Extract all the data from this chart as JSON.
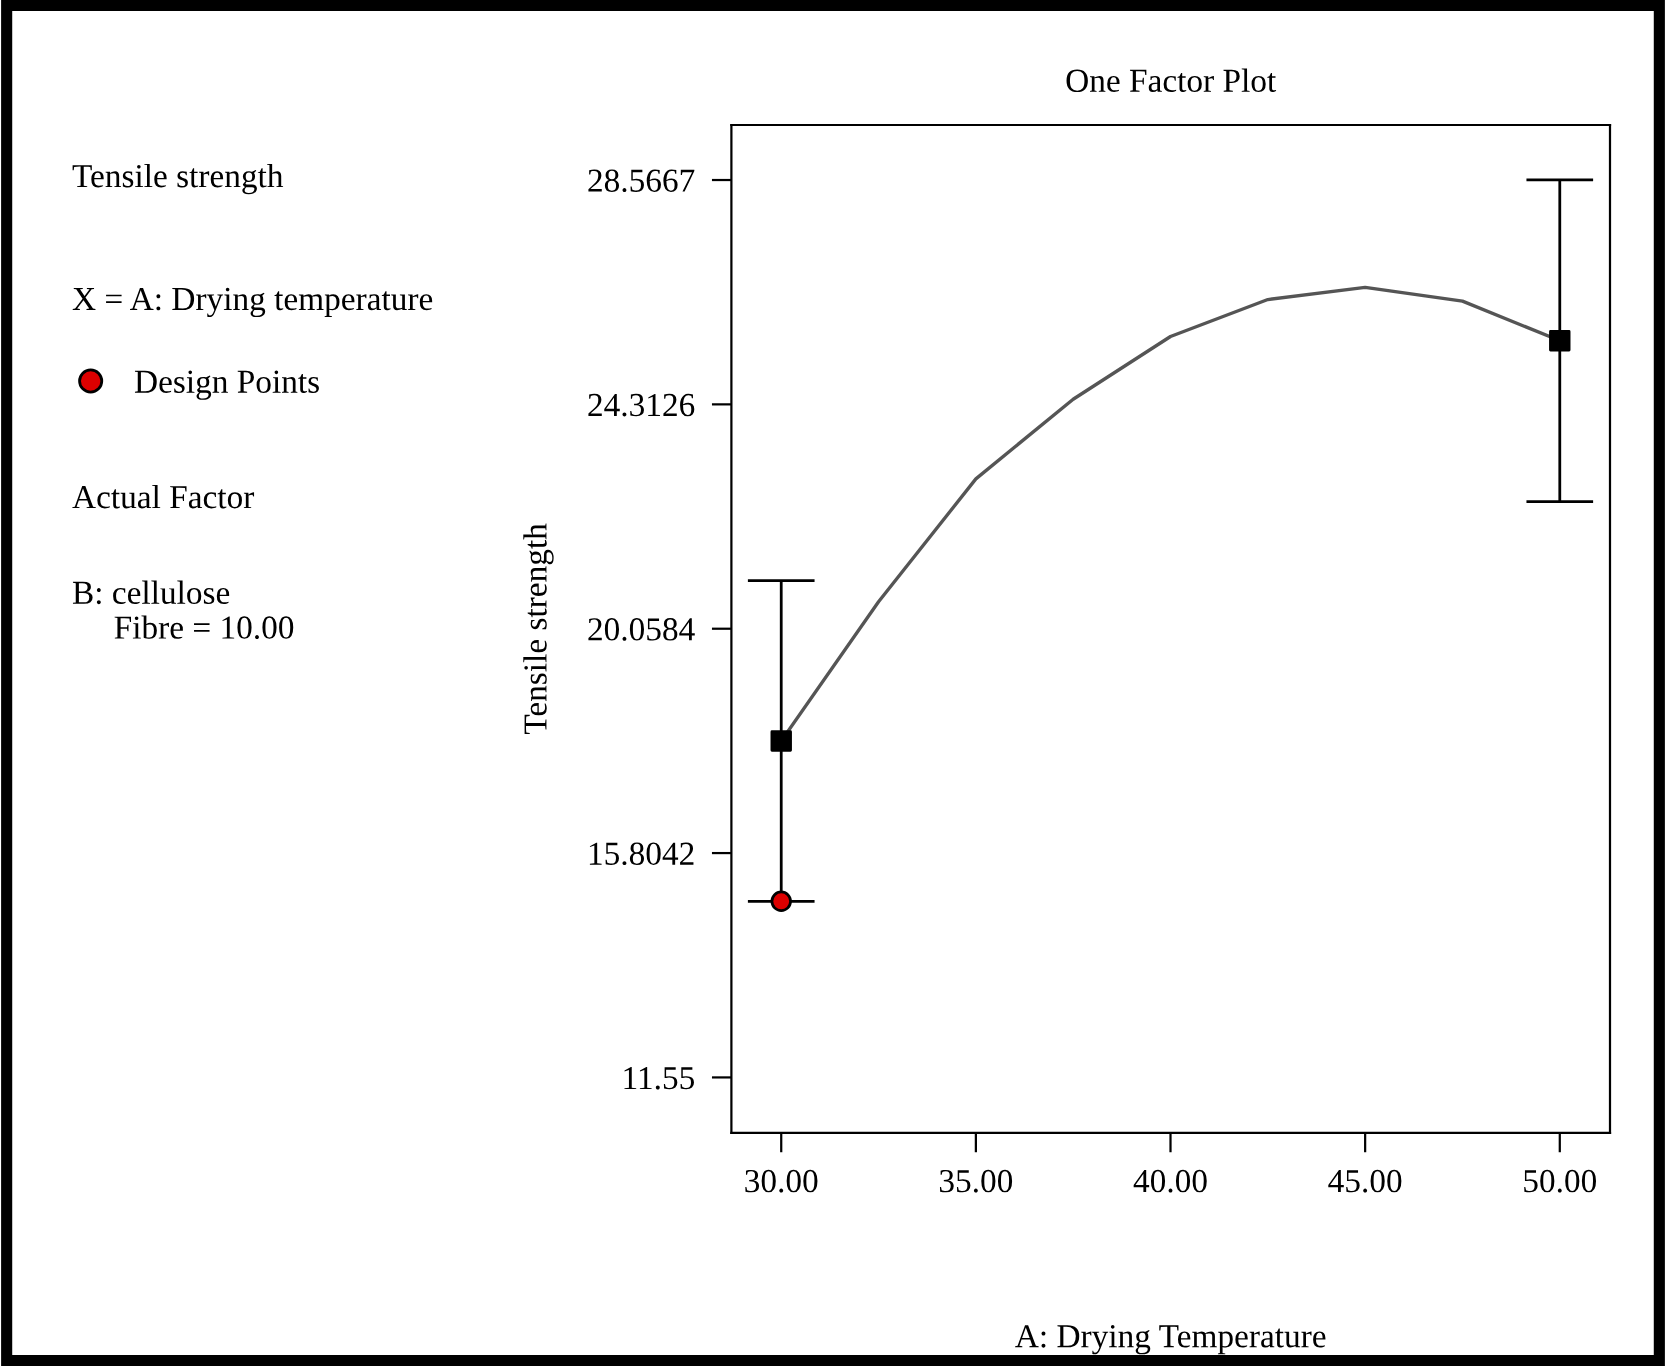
{
  "chart_data": {
    "type": "line",
    "title": "One Factor Plot",
    "xlabel": "A: Drying Temperature",
    "ylabel": "Tensile strength",
    "annotations": [
      "Tensile strength",
      "X = A: Drying temperature",
      "Actual Factor",
      "B: cellulose\n     Fibre = 10.00"
    ],
    "series": [
      {
        "color": "#555555",
        "x": [
          30,
          32.5,
          35,
          37.5,
          40,
          42.5,
          45,
          47.5,
          50
        ],
        "values": [
          17.93,
          20.57,
          22.9,
          24.41,
          25.6,
          26.3,
          26.53,
          26.27,
          25.52
        ],
        "marker": "none"
      },
      {
        "type": "scatter",
        "color": "#000000",
        "x": [
          30,
          50
        ],
        "values": [
          17.93,
          25.52
        ],
        "errors": [
          3.04,
          3.05
        ],
        "marker": "square"
      },
      {
        "type": "scatter",
        "name": "Design Points",
        "color": "#dd0000",
        "x": [
          30
        ],
        "values": [
          14.89
        ],
        "marker": "circle"
      }
    ],
    "xlim": [
      28.72,
      51.29
    ],
    "ylim": [
      10.5,
      29.61
    ],
    "xticks": [
      {
        "value": 30,
        "label": "30.00"
      },
      {
        "value": 35,
        "label": "35.00"
      },
      {
        "value": 40,
        "label": "40.00"
      },
      {
        "value": 45,
        "label": "45.00"
      },
      {
        "value": 50,
        "label": "50.00"
      }
    ],
    "yticks": [
      11.55,
      15.8042,
      20.0584,
      24.3126,
      28.5667
    ],
    "grid": false,
    "legend": "left"
  }
}
